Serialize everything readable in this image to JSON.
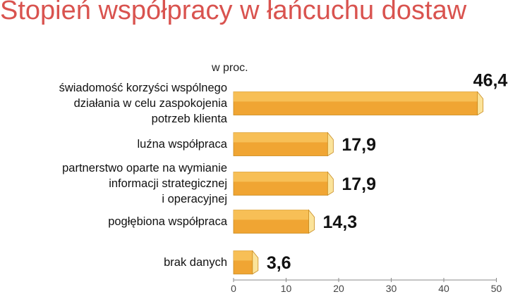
{
  "title": "Stopień współpracy w łańcuchu dostaw",
  "unit_label": "w proc.",
  "colors": {
    "title": "#d9534f",
    "bar_face": "#f0a533",
    "bar_top": "#f7c25a",
    "bar_side": "#fbe39a",
    "bar_edge": "#c98a1e",
    "axis": "#888888"
  },
  "chart_data": {
    "type": "bar",
    "orientation": "horizontal",
    "categories": [
      "świadomość korzyści wspólnego\ndziałania w celu zaspokojenia\npotrzeb klienta",
      "luźna współpraca",
      "partnerstwo oparte na wymianie\ninformacji strategicznej\ni operacyjnej",
      "pogłębiona współpraca",
      "brak danych"
    ],
    "values": [
      46.4,
      17.9,
      17.9,
      14.3,
      3.6
    ],
    "value_labels": [
      "46,4",
      "17,9",
      "17,9",
      "14,3",
      "3,6"
    ],
    "xlim": [
      0,
      50
    ],
    "xticks": [
      "0",
      "10",
      "20",
      "30",
      "40",
      "50"
    ],
    "grid": false
  }
}
